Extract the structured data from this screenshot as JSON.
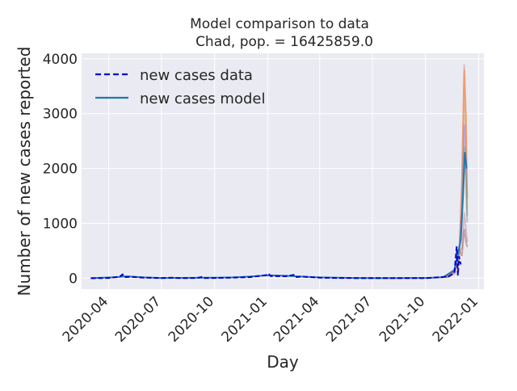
{
  "chart_data": {
    "type": "line",
    "title": "Model comparison to data",
    "subtitle": "Chad, pop. = 16425859.0",
    "xlabel": "Day",
    "ylabel": "Number of new cases reported",
    "xlim": [
      "2020-02-14",
      "2022-01-10"
    ],
    "ylim": [
      -200,
      4100
    ],
    "x_ticks": [
      "2020-04",
      "2020-07",
      "2020-10",
      "2021-01",
      "2021-04",
      "2021-07",
      "2021-10",
      "2022-01"
    ],
    "x_tick_dates": [
      "2020-04-01",
      "2020-07-01",
      "2020-10-01",
      "2021-01-01",
      "2021-04-01",
      "2021-07-01",
      "2021-10-01",
      "2022-01-01"
    ],
    "y_ticks": [
      0,
      1000,
      2000,
      3000,
      4000
    ],
    "grid": true,
    "legend_position": "top-left",
    "series": [
      {
        "name": "new cases data",
        "style": "dashed",
        "color": "#0000cc",
        "points": [
          [
            "2020-03-01",
            0
          ],
          [
            "2020-04-01",
            5
          ],
          [
            "2020-04-20",
            30
          ],
          [
            "2020-04-25",
            70
          ],
          [
            "2020-04-28",
            20
          ],
          [
            "2020-05-10",
            25
          ],
          [
            "2020-06-01",
            10
          ],
          [
            "2020-07-01",
            3
          ],
          [
            "2020-07-20",
            10
          ],
          [
            "2020-08-01",
            2
          ],
          [
            "2020-09-01",
            5
          ],
          [
            "2020-09-10",
            25
          ],
          [
            "2020-09-12",
            3
          ],
          [
            "2020-10-01",
            5
          ],
          [
            "2020-11-01",
            10
          ],
          [
            "2020-12-01",
            20
          ],
          [
            "2020-12-20",
            45
          ],
          [
            "2021-01-01",
            60
          ],
          [
            "2021-01-03",
            80
          ],
          [
            "2021-01-06",
            40
          ],
          [
            "2021-02-01",
            35
          ],
          [
            "2021-02-15",
            60
          ],
          [
            "2021-02-18",
            20
          ],
          [
            "2021-03-01",
            30
          ],
          [
            "2021-04-01",
            10
          ],
          [
            "2021-05-01",
            5
          ],
          [
            "2021-07-01",
            2
          ],
          [
            "2021-09-01",
            3
          ],
          [
            "2021-10-01",
            2
          ],
          [
            "2021-10-20",
            15
          ],
          [
            "2021-11-10",
            30
          ],
          [
            "2021-11-20",
            100
          ],
          [
            "2021-11-24",
            580
          ],
          [
            "2021-11-26",
            50
          ],
          [
            "2021-11-28",
            400
          ],
          [
            "2021-12-01",
            250
          ]
        ]
      },
      {
        "name": "new cases model",
        "style": "solid",
        "color": "#1f77b4",
        "points": [
          [
            "2020-03-01",
            2
          ],
          [
            "2020-04-15",
            20
          ],
          [
            "2020-05-01",
            35
          ],
          [
            "2020-06-01",
            15
          ],
          [
            "2020-07-01",
            5
          ],
          [
            "2020-09-01",
            8
          ],
          [
            "2020-10-01",
            10
          ],
          [
            "2020-11-01",
            15
          ],
          [
            "2020-12-01",
            30
          ],
          [
            "2021-01-01",
            55
          ],
          [
            "2021-02-01",
            45
          ],
          [
            "2021-03-01",
            30
          ],
          [
            "2021-04-01",
            15
          ],
          [
            "2021-06-01",
            5
          ],
          [
            "2021-08-01",
            3
          ],
          [
            "2021-10-01",
            5
          ],
          [
            "2021-11-01",
            20
          ],
          [
            "2021-11-20",
            150
          ],
          [
            "2021-12-01",
            700
          ],
          [
            "2021-12-05",
            1500
          ],
          [
            "2021-12-08",
            2300
          ],
          [
            "2021-12-11",
            2000
          ]
        ]
      }
    ],
    "ensemble_band": {
      "colors": [
        "#e07b7b",
        "#ff7f0e",
        "#d4a373",
        "#9c6ade",
        "#5fa55a",
        "#c27ba0",
        "#8c564b"
      ],
      "peak_values": [
        3900,
        3800,
        3200,
        2800,
        2400,
        1200,
        900
      ]
    }
  }
}
